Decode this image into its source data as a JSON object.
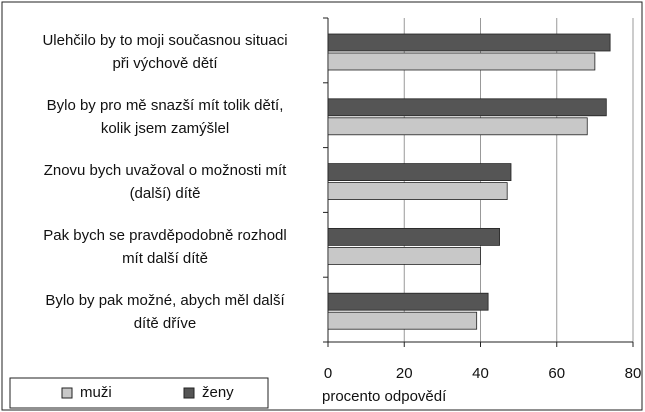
{
  "chart_data": {
    "type": "bar",
    "orientation": "horizontal",
    "categories": [
      "Ulehčilo by to moji současnou situaci\npři výchově dětí",
      "Bylo by pro mě snazší mít tolik dětí,\nkolik jsem zamýšlel",
      "Znovu bych uvažoval o možnosti mít\n(další) dítě",
      "Pak bych se pravděpodobně rozhodl\nmít další dítě",
      "Bylo by pak možné, abych měl další\ndítě dříve"
    ],
    "series": [
      {
        "name": "ženy",
        "color": "#555555",
        "values": [
          74,
          73,
          48,
          45,
          42
        ]
      },
      {
        "name": "muži",
        "color": "#c8c8c8",
        "values": [
          70,
          68,
          47,
          40,
          39
        ]
      }
    ],
    "xlim": [
      0,
      80
    ],
    "xticks": [
      0,
      20,
      40,
      60,
      80
    ],
    "grid": true,
    "xlabel": "procento odpovědí",
    "legend_order": [
      1,
      0
    ]
  }
}
